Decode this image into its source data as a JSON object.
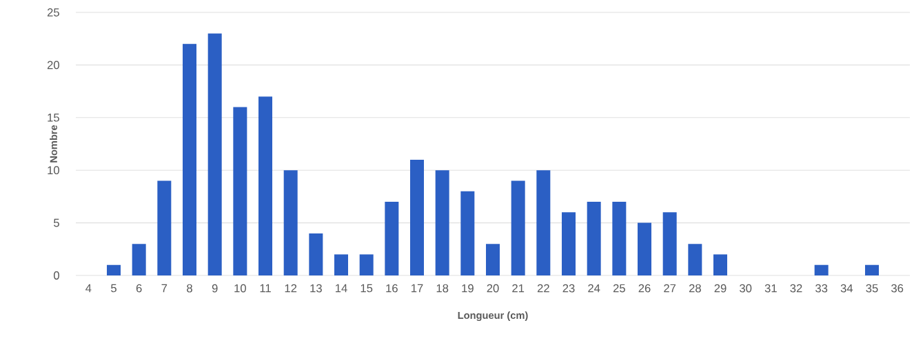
{
  "chart_data": {
    "type": "bar",
    "xlabel": "Longueur (cm)",
    "ylabel": "Nombre",
    "categories": [
      "4",
      "5",
      "6",
      "7",
      "8",
      "9",
      "10",
      "11",
      "12",
      "13",
      "14",
      "15",
      "16",
      "17",
      "18",
      "19",
      "20",
      "21",
      "22",
      "23",
      "24",
      "25",
      "26",
      "27",
      "28",
      "29",
      "30",
      "31",
      "32",
      "33",
      "34",
      "35",
      "36"
    ],
    "values": [
      0,
      1,
      3,
      9,
      22,
      23,
      16,
      17,
      10,
      4,
      2,
      2,
      7,
      11,
      10,
      8,
      3,
      9,
      10,
      6,
      7,
      7,
      5,
      6,
      3,
      2,
      0,
      0,
      0,
      1,
      0,
      1,
      0
    ],
    "color": "#2b5fc4",
    "ylim": [
      0,
      25
    ],
    "yticks": [
      0,
      5,
      10,
      15,
      20,
      25
    ],
    "grid": "y"
  }
}
